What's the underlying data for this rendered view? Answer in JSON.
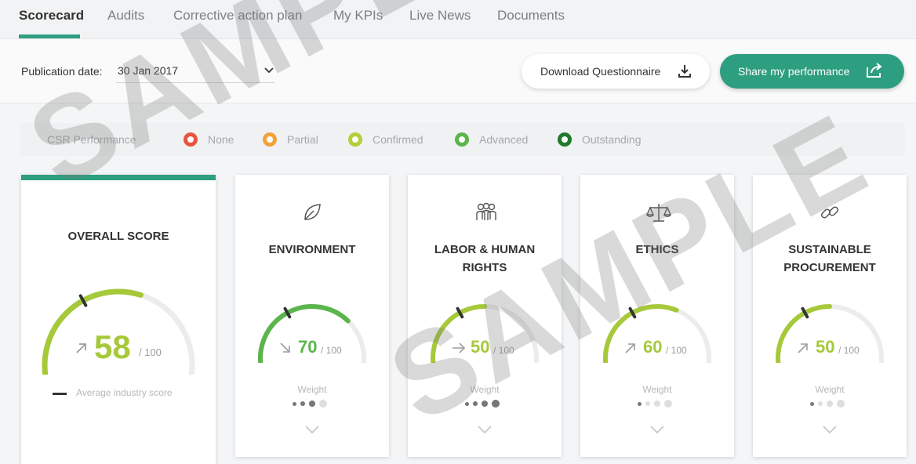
{
  "tabs": [
    {
      "label": "Scorecard",
      "active": true
    },
    {
      "label": "Audits"
    },
    {
      "label": "Corrective action plan"
    },
    {
      "label": "My KPIs"
    },
    {
      "label": "Live News"
    },
    {
      "label": "Documents"
    }
  ],
  "toolbar": {
    "publication_label": "Publication date:",
    "publication_value": "30 Jan 2017",
    "download_label": "Download Questionnaire",
    "download_icon": "download-icon",
    "share_label": "Share my performance",
    "share_icon": "share-icon"
  },
  "legend": {
    "title": "CSR Performance",
    "items": [
      {
        "label": "None",
        "color": "#e8553f"
      },
      {
        "label": "Partial",
        "color": "#f0a33a"
      },
      {
        "label": "Confirmed",
        "color": "#b3cf3b"
      },
      {
        "label": "Advanced",
        "color": "#5bb54a"
      },
      {
        "label": "Outstanding",
        "color": "#1f7a2c"
      }
    ]
  },
  "overall": {
    "title": "OVERALL SCORE",
    "score": "58",
    "max": "/ 100",
    "fraction": 0.58,
    "trend": "up",
    "color": "#a6c93a",
    "avg_label": "Average industry score"
  },
  "categories": [
    {
      "title": "ENVIRONMENT",
      "icon": "leaf-icon",
      "score": "70",
      "max": "/ 100",
      "fraction": 0.7,
      "trend": "down",
      "color": "#5bb54a",
      "weight_label": "Weight",
      "weight_level": 3
    },
    {
      "title": "LABOR & HUMAN RIGHTS",
      "icon": "people-icon",
      "score": "50",
      "max": "/ 100",
      "fraction": 0.5,
      "trend": "right",
      "color": "#a6c93a",
      "weight_label": "Weight",
      "weight_level": 4
    },
    {
      "title": "ETHICS",
      "icon": "scales-icon",
      "score": "60",
      "max": "/ 100",
      "fraction": 0.6,
      "trend": "up",
      "color": "#a6c93a",
      "weight_label": "Weight",
      "weight_level": 1
    },
    {
      "title": "SUSTAINABLE PROCUREMENT",
      "icon": "chain-link-icon",
      "score": "50",
      "max": "/ 100",
      "fraction": 0.5,
      "trend": "up",
      "color": "#a6c93a",
      "weight_label": "Weight",
      "weight_level": 1
    }
  ],
  "watermark": "SAMPLE"
}
